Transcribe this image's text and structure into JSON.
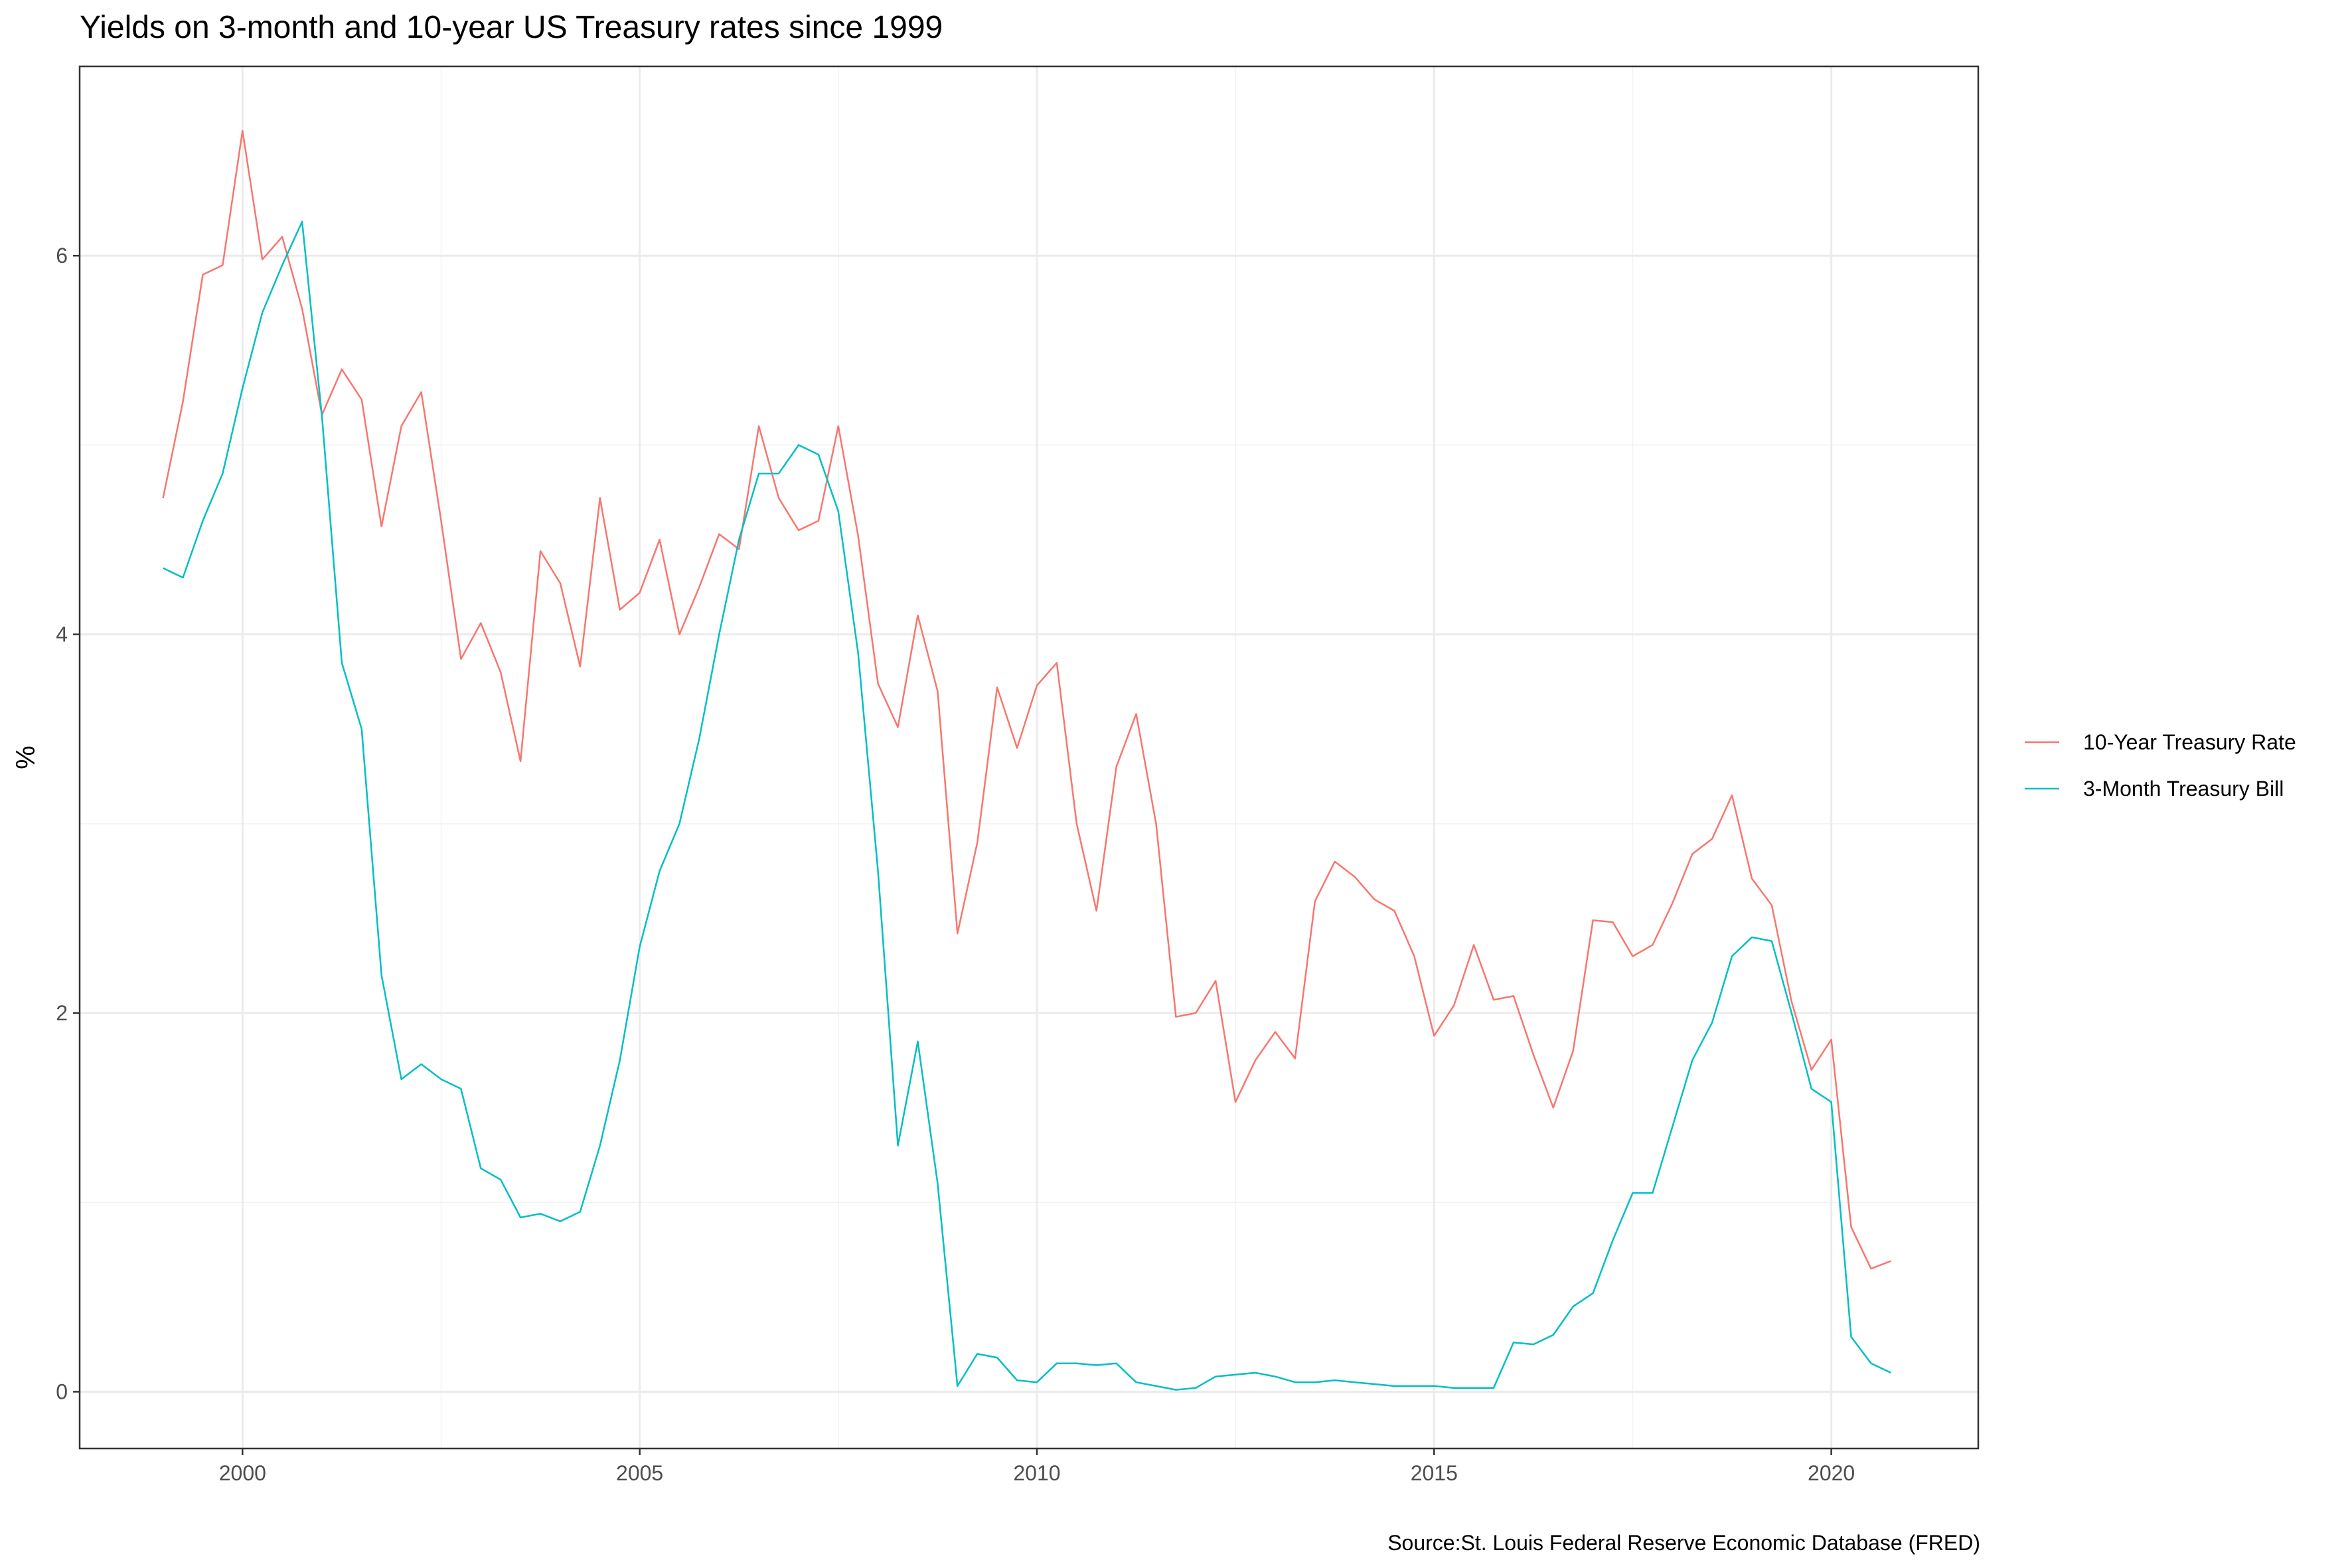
{
  "title": "Yields on 3-month and 10-year US Treasury rates since 1999",
  "caption": "Source:St. Louis Federal Reserve Economic Database (FRED)",
  "chart_data": {
    "type": "line",
    "title": "Yields on 3-month and 10-year US Treasury rates since 1999",
    "xlabel": "",
    "ylabel": "%",
    "x_ticks": [
      2000,
      2005,
      2010,
      2015,
      2020
    ],
    "y_ticks": [
      0,
      2,
      4,
      6
    ],
    "xlim": [
      1997.95,
      2021.85
    ],
    "ylim": [
      -0.3,
      7.0
    ],
    "grid": true,
    "legend_position": "right",
    "series": [
      {
        "name": "10-Year Treasury Rate",
        "color": "#F8766D",
        "points": [
          [
            1999.0,
            4.72
          ],
          [
            1999.25,
            5.23
          ],
          [
            1999.5,
            5.9
          ],
          [
            1999.75,
            5.95
          ],
          [
            2000.0,
            6.66
          ],
          [
            2000.25,
            5.98
          ],
          [
            2000.5,
            6.1
          ],
          [
            2000.75,
            5.72
          ],
          [
            2001.0,
            5.16
          ],
          [
            2001.25,
            5.4
          ],
          [
            2001.5,
            5.24
          ],
          [
            2001.75,
            4.57
          ],
          [
            2002.0,
            5.1
          ],
          [
            2002.25,
            5.28
          ],
          [
            2002.5,
            4.6
          ],
          [
            2002.75,
            3.87
          ],
          [
            2003.0,
            4.06
          ],
          [
            2003.25,
            3.8
          ],
          [
            2003.5,
            3.33
          ],
          [
            2003.75,
            4.44
          ],
          [
            2004.0,
            4.27
          ],
          [
            2004.25,
            3.83
          ],
          [
            2004.5,
            4.72
          ],
          [
            2004.75,
            4.13
          ],
          [
            2005.0,
            4.22
          ],
          [
            2005.25,
            4.5
          ],
          [
            2005.5,
            4.0
          ],
          [
            2005.75,
            4.25
          ],
          [
            2006.0,
            4.53
          ],
          [
            2006.25,
            4.45
          ],
          [
            2006.5,
            5.1
          ],
          [
            2006.75,
            4.72
          ],
          [
            2007.0,
            4.55
          ],
          [
            2007.25,
            4.6
          ],
          [
            2007.5,
            5.1
          ],
          [
            2007.75,
            4.52
          ],
          [
            2008.0,
            3.74
          ],
          [
            2008.25,
            3.51
          ],
          [
            2008.5,
            4.1
          ],
          [
            2008.75,
            3.7
          ],
          [
            2009.0,
            2.42
          ],
          [
            2009.25,
            2.9
          ],
          [
            2009.5,
            3.72
          ],
          [
            2009.75,
            3.4
          ],
          [
            2010.0,
            3.73
          ],
          [
            2010.25,
            3.85
          ],
          [
            2010.5,
            3.0
          ],
          [
            2010.75,
            2.54
          ],
          [
            2011.0,
            3.3
          ],
          [
            2011.25,
            3.58
          ],
          [
            2011.5,
            3.0
          ],
          [
            2011.75,
            1.98
          ],
          [
            2012.0,
            2.0
          ],
          [
            2012.25,
            2.17
          ],
          [
            2012.5,
            1.53
          ],
          [
            2012.75,
            1.75
          ],
          [
            2013.0,
            1.9
          ],
          [
            2013.25,
            1.76
          ],
          [
            2013.5,
            2.59
          ],
          [
            2013.75,
            2.8
          ],
          [
            2014.0,
            2.72
          ],
          [
            2014.25,
            2.6
          ],
          [
            2014.5,
            2.54
          ],
          [
            2014.75,
            2.3
          ],
          [
            2015.0,
            1.88
          ],
          [
            2015.25,
            2.04
          ],
          [
            2015.5,
            2.36
          ],
          [
            2015.75,
            2.07
          ],
          [
            2016.0,
            2.09
          ],
          [
            2016.25,
            1.78
          ],
          [
            2016.5,
            1.5
          ],
          [
            2016.75,
            1.8
          ],
          [
            2017.0,
            2.49
          ],
          [
            2017.25,
            2.48
          ],
          [
            2017.5,
            2.3
          ],
          [
            2017.75,
            2.36
          ],
          [
            2018.0,
            2.58
          ],
          [
            2018.25,
            2.84
          ],
          [
            2018.5,
            2.92
          ],
          [
            2018.75,
            3.15
          ],
          [
            2019.0,
            2.71
          ],
          [
            2019.25,
            2.57
          ],
          [
            2019.5,
            2.06
          ],
          [
            2019.75,
            1.7
          ],
          [
            2020.0,
            1.86
          ],
          [
            2020.25,
            0.87
          ],
          [
            2020.5,
            0.65
          ],
          [
            2020.75,
            0.69
          ]
        ]
      },
      {
        "name": "3-Month Treasury Bill",
        "color": "#00BFC4",
        "points": [
          [
            1999.0,
            4.35
          ],
          [
            1999.25,
            4.3
          ],
          [
            1999.5,
            4.6
          ],
          [
            1999.75,
            4.85
          ],
          [
            2000.0,
            5.3
          ],
          [
            2000.25,
            5.7
          ],
          [
            2000.5,
            5.95
          ],
          [
            2000.75,
            6.18
          ],
          [
            2001.0,
            5.15
          ],
          [
            2001.25,
            3.85
          ],
          [
            2001.5,
            3.5
          ],
          [
            2001.75,
            2.2
          ],
          [
            2002.0,
            1.65
          ],
          [
            2002.25,
            1.73
          ],
          [
            2002.5,
            1.65
          ],
          [
            2002.75,
            1.6
          ],
          [
            2003.0,
            1.18
          ],
          [
            2003.25,
            1.12
          ],
          [
            2003.5,
            0.92
          ],
          [
            2003.75,
            0.94
          ],
          [
            2004.0,
            0.9
          ],
          [
            2004.25,
            0.95
          ],
          [
            2004.5,
            1.3
          ],
          [
            2004.75,
            1.75
          ],
          [
            2005.0,
            2.35
          ],
          [
            2005.25,
            2.75
          ],
          [
            2005.5,
            3.0
          ],
          [
            2005.75,
            3.45
          ],
          [
            2006.0,
            4.0
          ],
          [
            2006.25,
            4.5
          ],
          [
            2006.5,
            4.85
          ],
          [
            2006.75,
            4.85
          ],
          [
            2007.0,
            5.0
          ],
          [
            2007.25,
            4.95
          ],
          [
            2007.5,
            4.65
          ],
          [
            2007.75,
            3.9
          ],
          [
            2008.0,
            2.75
          ],
          [
            2008.25,
            1.3
          ],
          [
            2008.5,
            1.85
          ],
          [
            2008.75,
            1.1
          ],
          [
            2009.0,
            0.03
          ],
          [
            2009.25,
            0.2
          ],
          [
            2009.5,
            0.18
          ],
          [
            2009.75,
            0.06
          ],
          [
            2010.0,
            0.05
          ],
          [
            2010.25,
            0.15
          ],
          [
            2010.5,
            0.15
          ],
          [
            2010.75,
            0.14
          ],
          [
            2011.0,
            0.15
          ],
          [
            2011.25,
            0.05
          ],
          [
            2011.5,
            0.03
          ],
          [
            2011.75,
            0.01
          ],
          [
            2012.0,
            0.02
          ],
          [
            2012.25,
            0.08
          ],
          [
            2012.5,
            0.09
          ],
          [
            2012.75,
            0.1
          ],
          [
            2013.0,
            0.08
          ],
          [
            2013.25,
            0.05
          ],
          [
            2013.5,
            0.05
          ],
          [
            2013.75,
            0.06
          ],
          [
            2014.0,
            0.05
          ],
          [
            2014.25,
            0.04
          ],
          [
            2014.5,
            0.03
          ],
          [
            2014.75,
            0.03
          ],
          [
            2015.0,
            0.03
          ],
          [
            2015.25,
            0.02
          ],
          [
            2015.5,
            0.02
          ],
          [
            2015.75,
            0.02
          ],
          [
            2016.0,
            0.26
          ],
          [
            2016.25,
            0.25
          ],
          [
            2016.5,
            0.3
          ],
          [
            2016.75,
            0.45
          ],
          [
            2017.0,
            0.52
          ],
          [
            2017.25,
            0.8
          ],
          [
            2017.5,
            1.05
          ],
          [
            2017.75,
            1.05
          ],
          [
            2018.0,
            1.4
          ],
          [
            2018.25,
            1.75
          ],
          [
            2018.5,
            1.95
          ],
          [
            2018.75,
            2.3
          ],
          [
            2019.0,
            2.4
          ],
          [
            2019.25,
            2.38
          ],
          [
            2019.5,
            2.0
          ],
          [
            2019.75,
            1.6
          ],
          [
            2020.0,
            1.53
          ],
          [
            2020.25,
            0.29
          ],
          [
            2020.5,
            0.15
          ],
          [
            2020.75,
            0.1
          ]
        ]
      }
    ]
  }
}
